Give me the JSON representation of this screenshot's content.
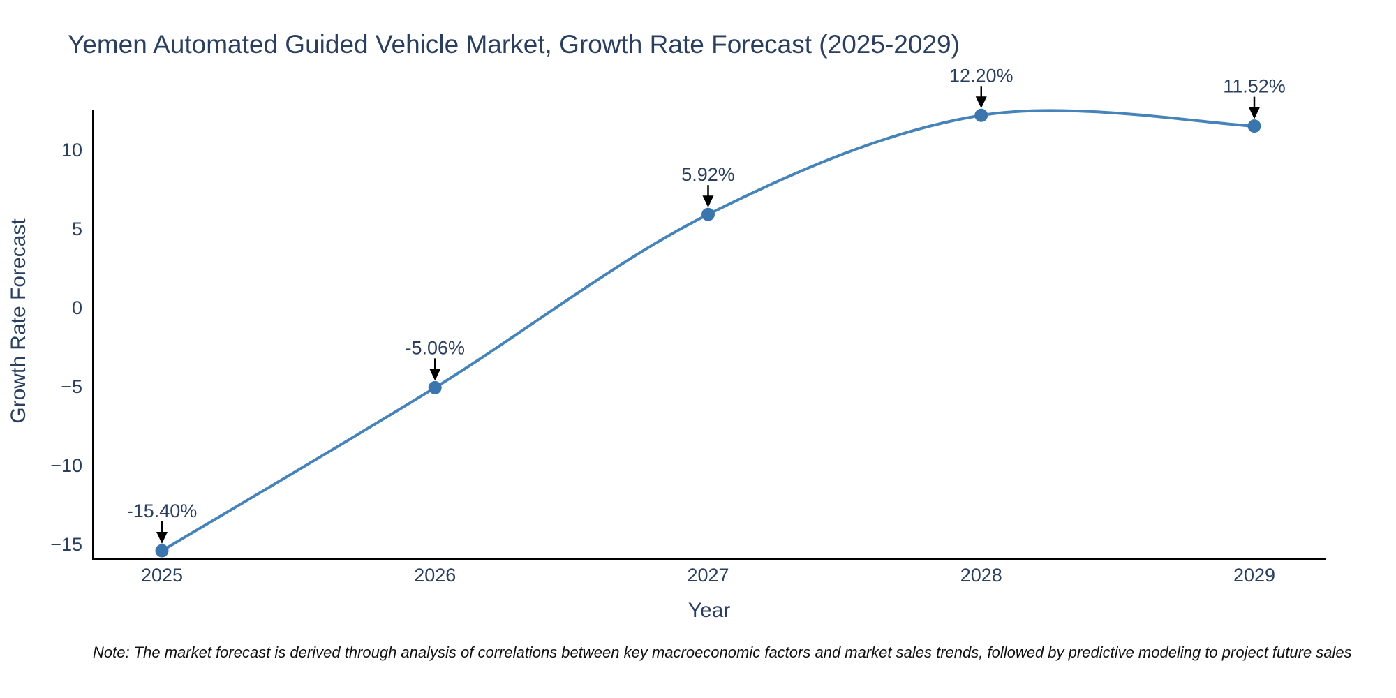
{
  "footnote": "Note: The market forecast is derived through analysis of correlations between key macroeconomic factors and market sales trends, followed by predictive modeling to project future sales",
  "chart_data": {
    "type": "line",
    "line_shape": "spline",
    "title": "Yemen Automated Guided Vehicle Market, Growth Rate Forecast (2025-2029)",
    "xlabel": "Year",
    "ylabel": "Growth Rate Forecast",
    "x": [
      2025,
      2026,
      2027,
      2028,
      2029
    ],
    "values": [
      -15.4,
      -5.06,
      5.92,
      12.2,
      11.52
    ],
    "point_labels": [
      "-15.40%",
      "-5.06%",
      "5.92%",
      "12.20%",
      "11.52%"
    ],
    "xtick_labels": [
      "2025",
      "2026",
      "2027",
      "2028",
      "2029"
    ],
    "ytick_values": [
      10,
      5,
      0,
      -5,
      -10,
      -15
    ],
    "ytick_labels": [
      "10",
      "5",
      "0",
      "−5",
      "−10",
      "−15"
    ],
    "ylim": [
      -15.9,
      12.55
    ],
    "grid": false,
    "legend_position": "none",
    "annotation_arrows": true,
    "colors": {
      "line": "#4683b8",
      "marker": "#3a76ad",
      "axis": "#000000",
      "text": "#2a3f5f",
      "arrow": "#000000",
      "note": "#111111",
      "background": "#ffffff"
    }
  }
}
